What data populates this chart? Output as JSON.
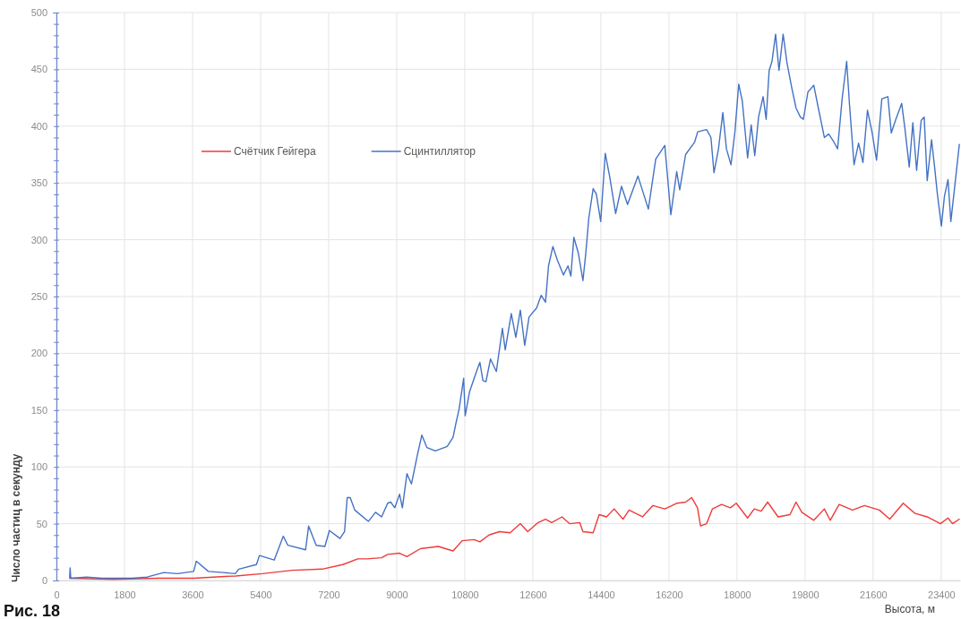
{
  "chart_data": {
    "type": "line",
    "xlabel": "Высота, м",
    "ylabel": "Число частиц в секунду",
    "annotations": [
      "Рис. 18"
    ],
    "xlim": [
      0,
      23900
    ],
    "xticks": [
      0,
      1800,
      3600,
      5400,
      7200,
      9000,
      10800,
      12600,
      14400,
      16200,
      18000,
      19800,
      21600,
      23400
    ],
    "ylim": [
      0,
      500
    ],
    "yticks": [
      0,
      {
        "value": 10,
        "label": null
      },
      {
        "value": 20,
        "label": null
      },
      {
        "value": 30,
        "label": null
      },
      {
        "value": 40,
        "label": null
      },
      50,
      {
        "value": 60,
        "label": null
      },
      {
        "value": 70,
        "label": null
      },
      {
        "value": 80,
        "label": null
      },
      {
        "value": 90,
        "label": null
      },
      100,
      {
        "value": 110,
        "label": null
      },
      {
        "value": 120,
        "label": null
      },
      {
        "value": 130,
        "label": null
      },
      {
        "value": 140,
        "label": null
      },
      150,
      {
        "value": 160,
        "label": null
      },
      {
        "value": 170,
        "label": null
      },
      {
        "value": 180,
        "label": null
      },
      {
        "value": 190,
        "label": null
      },
      200,
      {
        "value": 210,
        "label": null
      },
      {
        "value": 220,
        "label": null
      },
      {
        "value": 230,
        "label": null
      },
      {
        "value": 240,
        "label": null
      },
      250,
      {
        "value": 260,
        "label": null
      },
      {
        "value": 270,
        "label": null
      },
      {
        "value": 280,
        "label": null
      },
      {
        "value": 290,
        "label": null
      },
      300,
      {
        "value": 310,
        "label": null
      },
      {
        "value": 320,
        "label": null
      },
      {
        "value": 330,
        "label": null
      },
      {
        "value": 340,
        "label": null
      },
      350,
      {
        "value": 360,
        "label": null
      },
      {
        "value": 370,
        "label": null
      },
      {
        "value": 380,
        "label": null
      },
      {
        "value": 390,
        "label": null
      },
      400,
      {
        "value": 410,
        "label": null
      },
      {
        "value": 420,
        "label": null
      },
      {
        "value": 430,
        "label": null
      },
      {
        "value": 440,
        "label": null
      },
      450,
      {
        "value": 460,
        "label": null
      },
      {
        "value": 470,
        "label": null
      },
      {
        "value": 480,
        "label": null
      },
      {
        "value": 490,
        "label": null
      },
      500
    ],
    "grid": true,
    "legend": "top left",
    "line_style": "solid",
    "series": [
      {
        "name": "Счётчик Гейгера",
        "color": "#ee3b3b",
        "x": [
          350,
          1500,
          2690,
          3630,
          4740,
          5450,
          6235,
          7025,
          7575,
          7970,
          8205,
          8600,
          8760,
          9075,
          9270,
          9625,
          10100,
          10490,
          10730,
          11045,
          11200,
          11440,
          11715,
          12000,
          12270,
          12465,
          12740,
          12935,
          13100,
          13370,
          13570,
          13840,
          13925,
          14195,
          14355,
          14550,
          14750,
          14985,
          15145,
          15500,
          15775,
          16090,
          16405,
          16640,
          16800,
          16955,
          17035,
          17195,
          17350,
          17590,
          17825,
          17980,
          18280,
          18455,
          18640,
          18810,
          19085,
          19400,
          19560,
          19715,
          20030,
          20310,
          20465,
          20700,
          21055,
          21370,
          21765,
          22040,
          22395,
          22710,
          23030,
          23380,
          23580,
          23700,
          23880
        ],
        "values": [
          2,
          1,
          2,
          2,
          4,
          6,
          9,
          10,
          14,
          19,
          19,
          20,
          23,
          24,
          21,
          28,
          30,
          26,
          35,
          36,
          34,
          40,
          43,
          42,
          50,
          43,
          51,
          54,
          51,
          56,
          50,
          51,
          43,
          42,
          58,
          56,
          63,
          54,
          62,
          56,
          66,
          63,
          68,
          69,
          73,
          64,
          48,
          50,
          63,
          67,
          64,
          68,
          55,
          63,
          61,
          69,
          56,
          58,
          69,
          60,
          53,
          63,
          53,
          67,
          62,
          66,
          62,
          54,
          68,
          59,
          56,
          50,
          55,
          50,
          54
        ]
      },
      {
        "name": "Сцинтиллятор",
        "color": "#4472c4",
        "x": [
          350,
          362,
          380,
          800,
          1200,
          1600,
          2000,
          2400,
          2840,
          3200,
          3630,
          3700,
          4020,
          4400,
          4730,
          4820,
          5290,
          5370,
          5760,
          6000,
          6120,
          6590,
          6670,
          6870,
          7100,
          7220,
          7500,
          7620,
          7690,
          7770,
          7890,
          8250,
          8440,
          8600,
          8760,
          8840,
          8950,
          9075,
          9150,
          9270,
          9390,
          9550,
          9665,
          9800,
          10020,
          10335,
          10490,
          10570,
          10650,
          10770,
          10810,
          10925,
          11120,
          11200,
          11280,
          11360,
          11480,
          11635,
          11795,
          11870,
          12030,
          12150,
          12270,
          12385,
          12500,
          12700,
          12820,
          12935,
          13015,
          13130,
          13250,
          13410,
          13530,
          13605,
          13685,
          13805,
          13925,
          14000,
          14080,
          14195,
          14280,
          14395,
          14515,
          14630,
          14790,
          14945,
          15105,
          15380,
          15655,
          15850,
          16090,
          16250,
          16405,
          16485,
          16640,
          16880,
          16960,
          17195,
          17310,
          17390,
          17510,
          17625,
          17720,
          17840,
          17945,
          18045,
          18140,
          18280,
          18375,
          18470,
          18570,
          18690,
          18770,
          18850,
          18925,
          19020,
          19110,
          19220,
          19320,
          19440,
          19560,
          19675,
          19755,
          19875,
          20030,
          20150,
          20310,
          20425,
          20545,
          20660,
          20780,
          20900,
          20975,
          21095,
          21215,
          21330,
          21450,
          21570,
          21690,
          21830,
          21990,
          22080,
          22200,
          22355,
          22440,
          22555,
          22650,
          22750,
          22870,
          22950,
          23030,
          23145,
          23225,
          23300,
          23405,
          23485,
          23580,
          23655,
          23775,
          23880
        ],
        "values": [
          3,
          11,
          2,
          3,
          2,
          2,
          2,
          3,
          7,
          6,
          8,
          17,
          8,
          7,
          6,
          10,
          14,
          22,
          18,
          39,
          31,
          27,
          48,
          31,
          30,
          44,
          37,
          43,
          73,
          73,
          62,
          52,
          60,
          56,
          68,
          69,
          64,
          76,
          64,
          94,
          85,
          111,
          128,
          117,
          114,
          118,
          126,
          139,
          151,
          178,
          145,
          166,
          185,
          192,
          176,
          175,
          195,
          184,
          222,
          203,
          235,
          214,
          238,
          207,
          232,
          240,
          251,
          245,
          277,
          294,
          282,
          269,
          277,
          268,
          302,
          288,
          264,
          288,
          319,
          345,
          340,
          316,
          376,
          356,
          323,
          347,
          331,
          356,
          327,
          371,
          383,
          322,
          360,
          344,
          375,
          386,
          395,
          397,
          390,
          359,
          380,
          412,
          380,
          366,
          395,
          437,
          422,
          372,
          401,
          374,
          408,
          426,
          406,
          449,
          457,
          481,
          449,
          481,
          456,
          435,
          416,
          408,
          406,
          430,
          436,
          416,
          390,
          393,
          387,
          380,
          424,
          457,
          419,
          366,
          385,
          368,
          414,
          395,
          370,
          424,
          426,
          394,
          406,
          420,
          398,
          364,
          403,
          361,
          405,
          408,
          352,
          388,
          364,
          340,
          312,
          338,
          353,
          316,
          352,
          384
        ]
      }
    ]
  }
}
